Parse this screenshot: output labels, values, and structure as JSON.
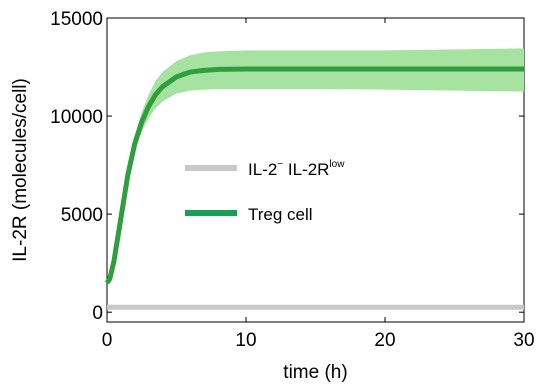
{
  "chart_data": {
    "type": "line",
    "xlabel": "time (h)",
    "ylabel": "IL-2R (molecules/cell)",
    "xlim": [
      0,
      30
    ],
    "ylim": [
      -500,
      15000
    ],
    "xticks": [
      0,
      10,
      20,
      30
    ],
    "yticks": [
      0,
      5000,
      10000,
      15000
    ],
    "xtick_labels": [
      "0",
      "10",
      "20",
      "30"
    ],
    "ytick_labels": [
      "0",
      "5000",
      "10000",
      "15000"
    ],
    "grid": false,
    "legend_position": "center",
    "series": [
      {
        "name_main": "IL-2",
        "name_sup_minus": "−",
        "name_rest": " IL-2R",
        "name_sup": "low",
        "color": "#c8c8c8",
        "x": [
          0,
          30
        ],
        "y": [
          250,
          250
        ]
      },
      {
        "name": "Treg cell",
        "color": "#2e9e3e",
        "band_color": "#a6e3a1",
        "x": [
          0.0,
          0.2,
          0.5,
          1.0,
          1.5,
          2.0,
          2.5,
          3.0,
          3.5,
          4.0,
          5.0,
          6.0,
          7.0,
          8.0,
          10.0,
          12.0,
          15.0,
          20.0,
          25.0,
          30.0
        ],
        "y": [
          1500,
          1700,
          2600,
          4800,
          7000,
          8600,
          9700,
          10500,
          11100,
          11500,
          12000,
          12250,
          12330,
          12380,
          12400,
          12400,
          12400,
          12400,
          12400,
          12400
        ],
        "y_lower": [
          1500,
          1650,
          2500,
          4600,
          6700,
          8200,
          9200,
          9900,
          10400,
          10750,
          11150,
          11300,
          11350,
          11380,
          11380,
          11380,
          11380,
          11350,
          11300,
          11250
        ],
        "y_upper": [
          1500,
          1750,
          2700,
          5000,
          7300,
          9000,
          10200,
          11100,
          11800,
          12250,
          12800,
          13100,
          13250,
          13300,
          13350,
          13350,
          13350,
          13350,
          13400,
          13450
        ]
      }
    ]
  }
}
